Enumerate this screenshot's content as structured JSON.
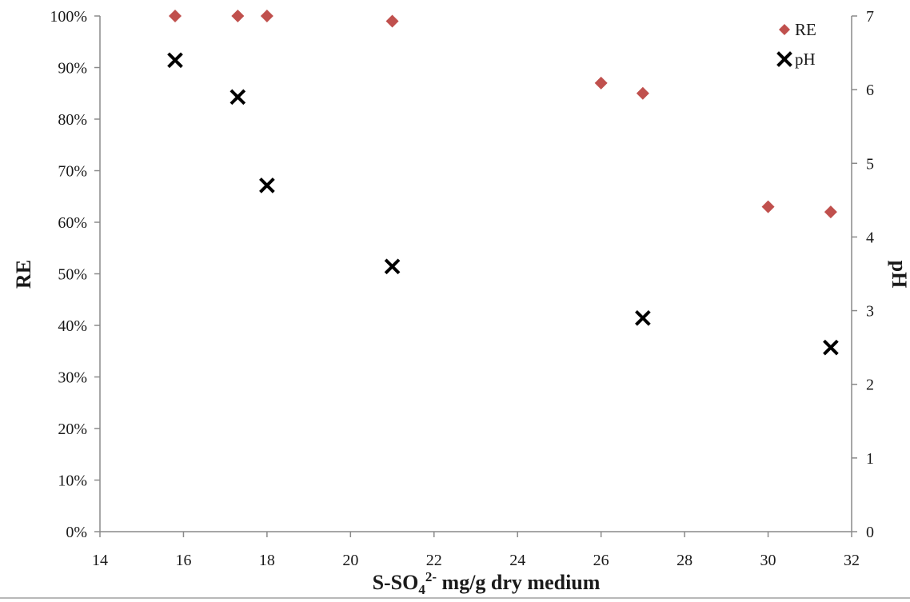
{
  "chart_data": {
    "type": "scatter",
    "title": "",
    "xlabel": {
      "prefix": "S-SO",
      "subscript": "4",
      "superscript": "2-",
      "suffix": " mg/g dry medium"
    },
    "ylabel_left": "RE",
    "ylabel_right": "pH",
    "xlim": [
      14,
      32
    ],
    "ylim_left": [
      0,
      1
    ],
    "ylim_right": [
      0,
      7
    ],
    "x_ticks": [
      "14",
      "16",
      "18",
      "20",
      "22",
      "24",
      "26",
      "28",
      "30",
      "32"
    ],
    "y_left_ticks": [
      "0%",
      "10%",
      "20%",
      "30%",
      "40%",
      "50%",
      "60%",
      "70%",
      "80%",
      "90%",
      "100%"
    ],
    "y_right_ticks": [
      "0",
      "1",
      "2",
      "3",
      "4",
      "5",
      "6",
      "7"
    ],
    "grid": false,
    "legend_position": "top-right",
    "series": [
      {
        "name": "RE",
        "axis": "left",
        "marker": "diamond",
        "color": "#c0504d",
        "x": [
          15.8,
          17.3,
          18.0,
          21.0,
          26.0,
          27.0,
          30.0,
          31.5
        ],
        "y": [
          1.0,
          1.0,
          1.0,
          0.99,
          0.87,
          0.85,
          0.63,
          0.62
        ]
      },
      {
        "name": "pH",
        "axis": "right",
        "marker": "x",
        "color": "#000000",
        "x": [
          15.8,
          17.3,
          18.0,
          21.0,
          27.0,
          31.5
        ],
        "y": [
          6.4,
          5.9,
          4.7,
          3.6,
          2.9,
          2.5
        ]
      }
    ]
  }
}
